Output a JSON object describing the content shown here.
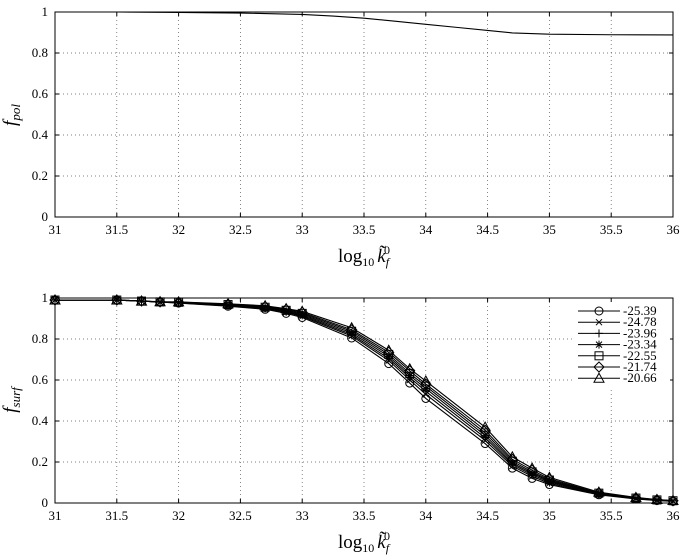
{
  "chart_data": [
    {
      "type": "line",
      "xlabel": "log₁₀ k̃f⁰",
      "ylabel": "f_pol",
      "xlim": [
        31,
        36
      ],
      "ylim": [
        0,
        1
      ],
      "xticks": [
        "31",
        "31.5",
        "32",
        "32.5",
        "33",
        "33.5",
        "34",
        "34.5",
        "35",
        "35.5",
        "36"
      ],
      "yticks": [
        "0",
        "0.2",
        "0.4",
        "0.6",
        "0.8",
        "1"
      ],
      "grid": true,
      "series": [
        {
          "x": [
            31,
            31.5,
            32,
            32.5,
            33,
            33.25,
            33.5,
            33.75,
            34,
            34.25,
            34.5,
            34.7,
            35,
            35.5,
            36
          ],
          "y": [
            1.0,
            1.0,
            0.998,
            0.995,
            0.988,
            0.98,
            0.97,
            0.955,
            0.94,
            0.925,
            0.91,
            0.898,
            0.892,
            0.889,
            0.888
          ]
        }
      ]
    },
    {
      "type": "line",
      "xlabel": "log₁₀ k̃f⁰",
      "ylabel": "f_surf",
      "xlim": [
        31,
        36
      ],
      "ylim": [
        0,
        1
      ],
      "xticks": [
        "31",
        "31.5",
        "32",
        "32.5",
        "33",
        "33.5",
        "34",
        "34.5",
        "35",
        "35.5",
        "36"
      ],
      "yticks": [
        "0",
        "0.2",
        "0.4",
        "0.6",
        "0.8",
        "1"
      ],
      "grid": true,
      "legend_position": "top-right",
      "x": [
        31,
        31.5,
        31.7,
        31.85,
        32,
        32.4,
        32.7,
        32.87,
        33,
        33.4,
        33.7,
        33.87,
        34,
        34.48,
        34.7,
        34.86,
        35,
        35.4,
        35.7,
        35.87,
        36
      ],
      "series": [
        {
          "name": "-25.39",
          "marker": "circle",
          "values": [
            0.99,
            0.99,
            0.985,
            0.98,
            0.975,
            0.96,
            0.945,
            0.925,
            0.905,
            0.805,
            0.68,
            0.585,
            0.51,
            0.29,
            0.17,
            0.12,
            0.09,
            0.04,
            0.02,
            0.012,
            0.008
          ]
        },
        {
          "name": "-24.78",
          "marker": "x",
          "values": [
            0.99,
            0.99,
            0.985,
            0.98,
            0.976,
            0.962,
            0.948,
            0.93,
            0.91,
            0.815,
            0.695,
            0.6,
            0.53,
            0.305,
            0.18,
            0.13,
            0.096,
            0.042,
            0.021,
            0.013,
            0.009
          ]
        },
        {
          "name": "-23.96",
          "marker": "plus",
          "values": [
            0.99,
            0.99,
            0.985,
            0.98,
            0.977,
            0.964,
            0.95,
            0.933,
            0.915,
            0.822,
            0.705,
            0.612,
            0.545,
            0.318,
            0.188,
            0.138,
            0.102,
            0.044,
            0.022,
            0.014,
            0.01
          ]
        },
        {
          "name": "-23.34",
          "marker": "star",
          "values": [
            0.99,
            0.99,
            0.985,
            0.98,
            0.978,
            0.966,
            0.952,
            0.936,
            0.92,
            0.83,
            0.715,
            0.622,
            0.558,
            0.33,
            0.195,
            0.145,
            0.107,
            0.046,
            0.023,
            0.015,
            0.01
          ]
        },
        {
          "name": "-22.55",
          "marker": "square",
          "values": [
            0.99,
            0.99,
            0.985,
            0.981,
            0.979,
            0.968,
            0.955,
            0.94,
            0.925,
            0.838,
            0.725,
            0.632,
            0.57,
            0.342,
            0.204,
            0.152,
            0.112,
            0.048,
            0.024,
            0.015,
            0.011
          ]
        },
        {
          "name": "-21.74",
          "marker": "diamond",
          "values": [
            0.99,
            0.99,
            0.985,
            0.981,
            0.98,
            0.97,
            0.958,
            0.944,
            0.93,
            0.845,
            0.735,
            0.645,
            0.58,
            0.355,
            0.213,
            0.16,
            0.118,
            0.05,
            0.025,
            0.016,
            0.011
          ]
        },
        {
          "name": "-20.66",
          "marker": "triangle",
          "values": [
            0.99,
            0.99,
            0.985,
            0.982,
            0.981,
            0.972,
            0.962,
            0.948,
            0.935,
            0.855,
            0.745,
            0.655,
            0.595,
            0.37,
            0.225,
            0.17,
            0.125,
            0.053,
            0.027,
            0.017,
            0.012
          ]
        }
      ]
    }
  ]
}
